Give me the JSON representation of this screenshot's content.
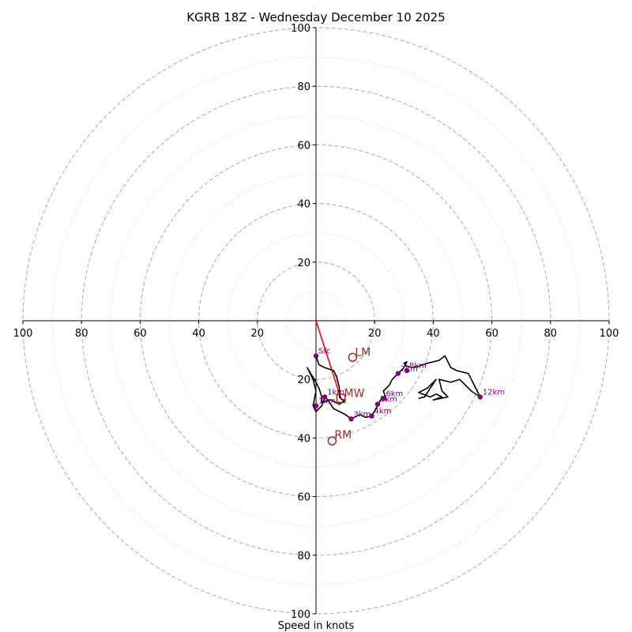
{
  "chart_data": {
    "type": "hodograph",
    "title": "KGRB 18Z - Wednesday December 10 2025",
    "xlabel": "Speed in knots",
    "units": "knots",
    "xlim": [
      -100,
      100
    ],
    "ylim": [
      -100,
      100
    ],
    "ring_speeds": [
      20,
      40,
      60,
      80,
      100
    ],
    "minor_ring_speeds": [
      10,
      30,
      50,
      70,
      90
    ],
    "x_tick_labels": [
      "100",
      "80",
      "60",
      "40",
      "20",
      "",
      "20",
      "40",
      "60",
      "80",
      "100"
    ],
    "y_tick_labels_top": [
      "20",
      "40",
      "60",
      "80",
      "100"
    ],
    "y_tick_labels_bottom": [
      "20",
      "40",
      "60",
      "80",
      "100"
    ],
    "trace_points": [
      [
        0,
        -12
      ],
      [
        1,
        -15
      ],
      [
        3,
        -16
      ],
      [
        6,
        -17
      ],
      [
        7,
        -19
      ],
      [
        8,
        -23
      ],
      [
        8,
        -26
      ],
      [
        9,
        -27
      ],
      [
        10,
        -27
      ],
      [
        8,
        -28.5
      ],
      [
        5,
        -27
      ],
      [
        2,
        -28
      ],
      [
        2,
        -26
      ],
      [
        1,
        -23
      ],
      [
        0,
        -21
      ],
      [
        -3,
        -16
      ],
      [
        -1,
        -20
      ],
      [
        0,
        -24
      ],
      [
        -1,
        -29
      ],
      [
        0,
        -31
      ],
      [
        2,
        -29
      ],
      [
        3,
        -26
      ],
      [
        4,
        -27
      ],
      [
        6,
        -30
      ],
      [
        8,
        -31
      ],
      [
        10,
        -32
      ],
      [
        12,
        -33.5
      ],
      [
        15,
        -32
      ],
      [
        17,
        -33
      ],
      [
        19,
        -32.5
      ],
      [
        21,
        -29
      ],
      [
        22,
        -27
      ],
      [
        23,
        -26
      ],
      [
        24,
        -27
      ],
      [
        23,
        -24
      ],
      [
        25,
        -22
      ],
      [
        26,
        -20
      ],
      [
        28,
        -18
      ],
      [
        30,
        -16
      ],
      [
        31,
        -14
      ],
      [
        30,
        -14.5
      ],
      [
        31,
        -15.5
      ],
      [
        33,
        -16
      ],
      [
        35,
        -15.5
      ],
      [
        38,
        -14.5
      ],
      [
        42,
        -13.5
      ],
      [
        44,
        -12
      ],
      [
        46,
        -16
      ],
      [
        48,
        -17
      ],
      [
        52,
        -18
      ],
      [
        56,
        -26
      ],
      [
        53,
        -24
      ],
      [
        51,
        -22
      ],
      [
        49,
        -20
      ],
      [
        46,
        -21
      ],
      [
        42,
        -20
      ],
      [
        43,
        -24
      ],
      [
        45,
        -26
      ],
      [
        40,
        -27
      ],
      [
        43,
        -26
      ],
      [
        41,
        -25
      ],
      [
        39,
        -26
      ],
      [
        35,
        -24.5
      ],
      [
        38,
        -23
      ],
      [
        40,
        -21
      ],
      [
        41,
        -20
      ],
      [
        39,
        -23
      ],
      [
        37,
        -26
      ],
      [
        35,
        -26.5
      ]
    ],
    "height_markers": [
      {
        "label": "Sfc",
        "u": 0,
        "v": -12
      },
      {
        "label": "1km",
        "u": 3,
        "v": -26
      },
      {
        "label": "1km",
        "u": 0,
        "v": -29
      },
      {
        "label": "3km",
        "u": 12,
        "v": -33.5
      },
      {
        "label": "4km",
        "u": 19,
        "v": -32.5
      },
      {
        "label": "5km",
        "u": 21,
        "v": -28.5
      },
      {
        "label": "6km",
        "u": 23,
        "v": -26.5
      },
      {
        "label": "7km",
        "u": 28,
        "v": -18
      },
      {
        "label": "8km",
        "u": 31,
        "v": -17
      },
      {
        "label": "12km",
        "u": 56,
        "v": -26
      }
    ],
    "storm_motion": {
      "mean_wind": {
        "label": "MW",
        "u": 8.5,
        "v": -26.5
      },
      "left_mover": {
        "label": "LM",
        "u": 12.5,
        "v": -12.5
      },
      "right_mover": {
        "label": "RM",
        "u": 5.5,
        "v": -41
      }
    },
    "shear_vector": {
      "from": [
        0,
        0
      ],
      "to": [
        8.5,
        -26.5
      ]
    },
    "colors": {
      "ring_major": "#b0b0b0",
      "ring_minor": "#d0d0d0",
      "axis": "#000000",
      "trace": "#000000",
      "marker": "#800080",
      "storm": "#b22222",
      "shear": "#ff0000",
      "text": "#000000"
    }
  }
}
